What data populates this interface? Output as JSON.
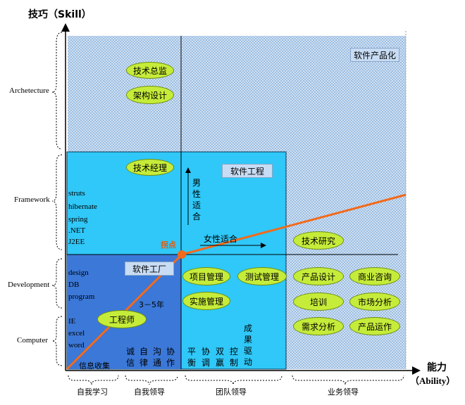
{
  "y_axis": {
    "title": "技巧（Skill）"
  },
  "x_axis": {
    "title_line1": "能力",
    "title_line2": "（Ability）"
  },
  "levels": [
    "Archetecture",
    "Framework",
    "Development",
    "Computer"
  ],
  "stages": [
    "自我学习",
    "自我领导",
    "团队领导",
    "业务领导"
  ],
  "region_labels": {
    "software_product": "软件产品化",
    "software_engineering": "软件工程",
    "software_factory": "软件工厂"
  },
  "pills": {
    "tech_director": "技术总监",
    "architecture_design": "架构设计",
    "tech_manager": "技术经理",
    "tech_research": "技术研究",
    "project_management": "项目管理",
    "test_management": "测试管理",
    "implementation_management": "实施管理",
    "product_design": "产品设计",
    "business_consulting": "商业咨询",
    "training": "培训",
    "market_analysis": "市场分析",
    "requirement_analysis": "需求分析",
    "product_operation": "产品运作",
    "engineer": "工程师"
  },
  "framework_list": [
    "struts",
    "hibernate",
    "spring",
    ".NET",
    "J2EE"
  ],
  "development_list": [
    "design",
    "DB",
    "program"
  ],
  "computer_list": [
    "IE",
    "excel",
    "word"
  ],
  "inflection_point": "拐点",
  "years": "3－5年",
  "male_suited": "男性适合",
  "female_suited": "女性适合",
  "info_collection": "信息收集",
  "self_lead_pairs": [
    "诚信",
    "自律",
    "沟通",
    "协作"
  ],
  "team_lead_pairs": [
    "平衡",
    "协调",
    "双赢",
    "控制",
    "成果驱动"
  ],
  "colors": {
    "dotted_fill": "#a8c8e8",
    "framework_fill": "#2fc8f8",
    "factory_fill": "#3b78d8",
    "pill_fill": "#c6ec3a",
    "growth_line": "#f26a1b",
    "inflection_label": "#e05a10"
  }
}
